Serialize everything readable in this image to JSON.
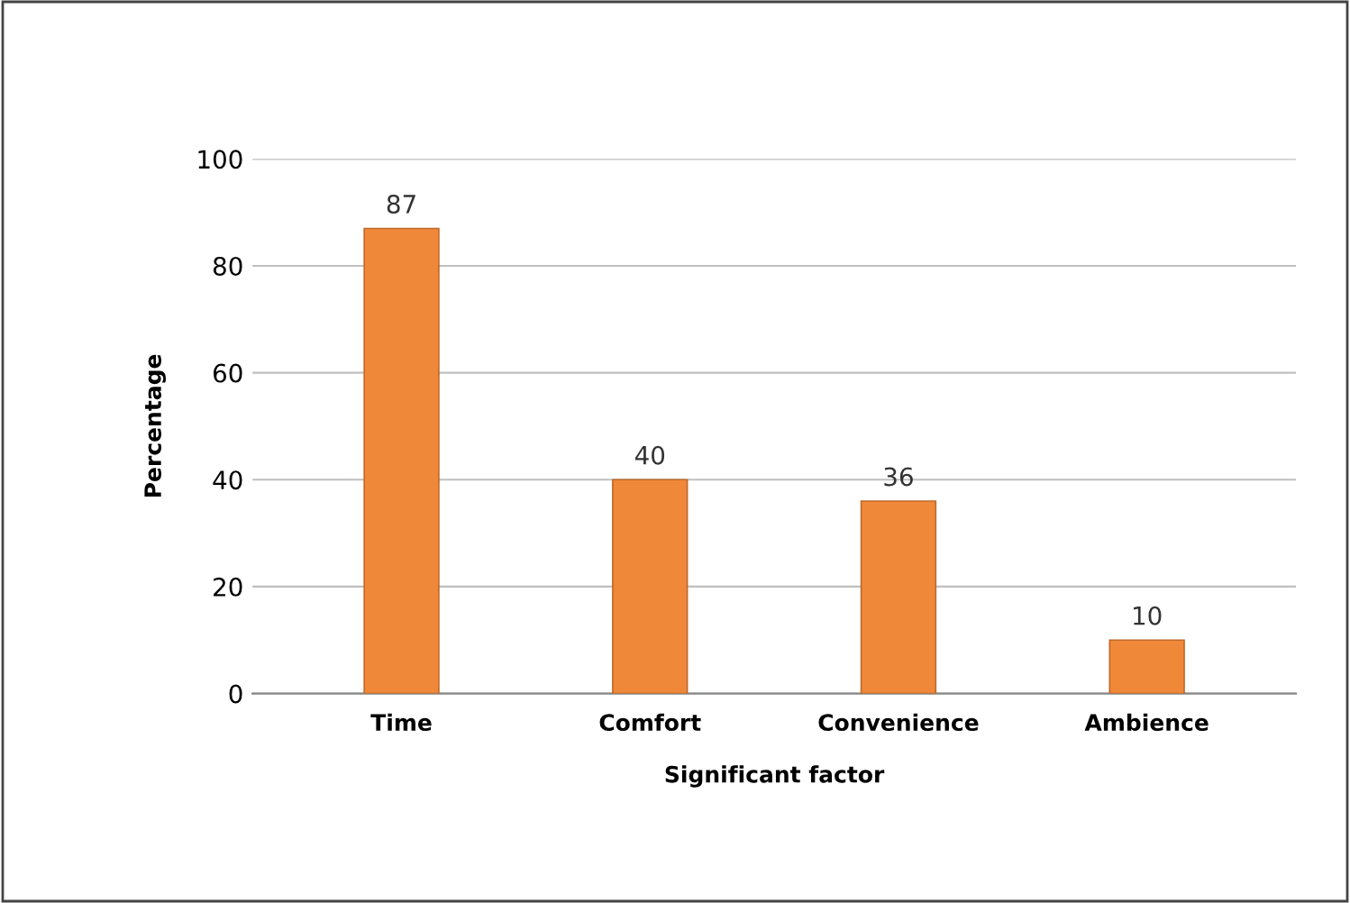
{
  "chart_data": {
    "type": "bar",
    "xlabel": "Significant factor",
    "ylabel": "Percentage",
    "categories": [
      "Time",
      "Comfort",
      "Convenience",
      "Ambience"
    ],
    "values": [
      87,
      40,
      36,
      10
    ],
    "color": "#f0883a",
    "ylim": [
      0,
      100
    ],
    "yticks": [
      0,
      20,
      40,
      60,
      80,
      100
    ],
    "grid": "y",
    "data_labels": true
  }
}
